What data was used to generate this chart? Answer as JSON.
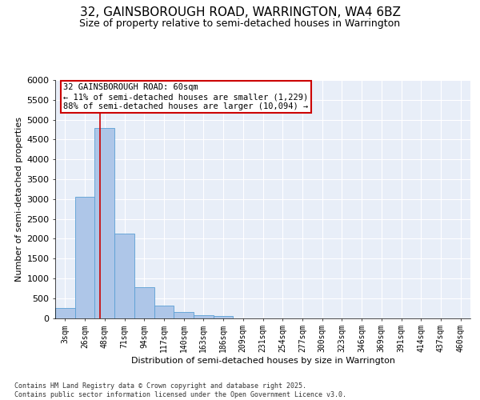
{
  "title_line1": "32, GAINSBOROUGH ROAD, WARRINGTON, WA4 6BZ",
  "title_line2": "Size of property relative to semi-detached houses in Warrington",
  "xlabel": "Distribution of semi-detached houses by size in Warrington",
  "ylabel": "Number of semi-detached properties",
  "footer": "Contains HM Land Registry data © Crown copyright and database right 2025.\nContains public sector information licensed under the Open Government Licence v3.0.",
  "categories": [
    "3sqm",
    "26sqm",
    "48sqm",
    "71sqm",
    "94sqm",
    "117sqm",
    "140sqm",
    "163sqm",
    "186sqm",
    "209sqm",
    "231sqm",
    "254sqm",
    "277sqm",
    "300sqm",
    "323sqm",
    "346sqm",
    "369sqm",
    "391sqm",
    "414sqm",
    "437sqm",
    "460sqm"
  ],
  "values": [
    250,
    3050,
    4800,
    2120,
    780,
    310,
    155,
    75,
    50,
    0,
    0,
    0,
    0,
    0,
    0,
    0,
    0,
    0,
    0,
    0,
    0
  ],
  "bar_color": "#aec6e8",
  "bar_edge_color": "#5a9fd4",
  "ylim": [
    0,
    6000
  ],
  "yticks": [
    0,
    500,
    1000,
    1500,
    2000,
    2500,
    3000,
    3500,
    4000,
    4500,
    5000,
    5500,
    6000
  ],
  "property_label": "32 GAINSBOROUGH ROAD: 60sqm",
  "pct_smaller": 11,
  "pct_larger": 88,
  "count_smaller": 1229,
  "count_larger": 10094,
  "annotation_box_color": "#ffffff",
  "annotation_box_edge": "#cc0000",
  "vline_color": "#cc0000",
  "vline_x": 1.75,
  "bg_color": "#e8eef8",
  "grid_color": "#ffffff",
  "title_fontsize": 11,
  "subtitle_fontsize": 9,
  "axis_label_fontsize": 8,
  "tick_label_fontsize": 7,
  "annotation_fontsize": 7.5
}
